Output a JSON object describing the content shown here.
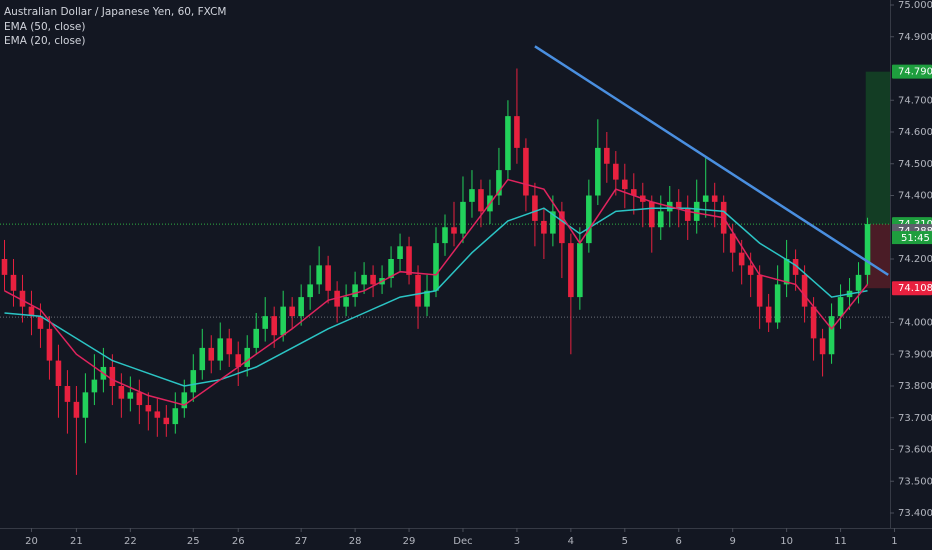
{
  "chart_data": {
    "type": "candlestick",
    "title": "Australian Dollar / Japanese Yen, 60, FXCM",
    "up_color": "#22d15b",
    "down_color": "#e8213f",
    "xlim": [
      -0.5,
      98.5
    ],
    "ylim": [
      73.4,
      75.0
    ],
    "xticks": [
      {
        "value": 3,
        "label": "20"
      },
      {
        "value": 8,
        "label": "21"
      },
      {
        "value": 14,
        "label": "22"
      },
      {
        "value": 21,
        "label": "25"
      },
      {
        "value": 26,
        "label": "26"
      },
      {
        "value": 33,
        "label": "27"
      },
      {
        "value": 39,
        "label": "28"
      },
      {
        "value": 45,
        "label": "29"
      },
      {
        "value": 51,
        "label": "Dec"
      },
      {
        "value": 57,
        "label": "3"
      },
      {
        "value": 63,
        "label": "4"
      },
      {
        "value": 69,
        "label": "5"
      },
      {
        "value": 75,
        "label": "6"
      },
      {
        "value": 81,
        "label": "9"
      },
      {
        "value": 87,
        "label": "10"
      },
      {
        "value": 93,
        "label": "11"
      },
      {
        "value": 99,
        "label": "1"
      }
    ],
    "yticks": [
      {
        "value": 75.0,
        "label": "75.000"
      },
      {
        "value": 74.9,
        "label": "74.900"
      },
      {
        "value": 74.7,
        "label": "74.700"
      },
      {
        "value": 74.6,
        "label": "74.600"
      },
      {
        "value": 74.5,
        "label": "74.500"
      },
      {
        "value": 74.4,
        "label": "74.400"
      },
      {
        "value": 74.2,
        "label": "74.200"
      },
      {
        "value": 74.0,
        "label": "74.000"
      },
      {
        "value": 73.9,
        "label": "73.900"
      },
      {
        "value": 73.8,
        "label": "73.800"
      },
      {
        "value": 73.7,
        "label": "73.700"
      },
      {
        "value": 73.6,
        "label": "73.600"
      },
      {
        "value": 73.5,
        "label": "73.500"
      },
      {
        "value": 73.4,
        "label": "73.400"
      }
    ],
    "x": [
      0,
      1,
      2,
      3,
      4,
      5,
      6,
      7,
      8,
      9,
      10,
      11,
      12,
      13,
      14,
      15,
      16,
      17,
      18,
      19,
      20,
      21,
      22,
      23,
      24,
      25,
      26,
      27,
      28,
      29,
      30,
      31,
      32,
      33,
      34,
      35,
      36,
      37,
      38,
      39,
      40,
      41,
      42,
      43,
      44,
      45,
      46,
      47,
      48,
      49,
      50,
      51,
      52,
      53,
      54,
      55,
      56,
      57,
      58,
      59,
      60,
      61,
      62,
      63,
      64,
      65,
      66,
      67,
      68,
      69,
      70,
      71,
      72,
      73,
      74,
      75,
      76,
      77,
      78,
      79,
      80,
      81,
      82,
      83,
      84,
      85,
      86,
      87,
      88,
      89,
      90,
      91,
      92,
      93,
      94,
      95,
      96
    ],
    "open": [
      74.2,
      74.15,
      74.1,
      74.05,
      74.02,
      73.98,
      73.88,
      73.8,
      73.75,
      73.7,
      73.78,
      73.82,
      73.86,
      73.8,
      73.76,
      73.78,
      73.74,
      73.72,
      73.7,
      73.68,
      73.73,
      73.78,
      73.85,
      73.92,
      73.88,
      73.95,
      73.9,
      73.86,
      73.92,
      73.98,
      74.02,
      73.96,
      74.05,
      74.02,
      74.08,
      74.12,
      74.18,
      74.1,
      74.05,
      74.08,
      74.12,
      74.15,
      74.12,
      74.14,
      74.2,
      74.24,
      74.15,
      74.05,
      74.1,
      74.25,
      74.3,
      74.28,
      74.38,
      74.42,
      74.35,
      74.4,
      74.48,
      74.65,
      74.55,
      74.4,
      74.32,
      74.28,
      74.35,
      74.25,
      74.08,
      74.25,
      74.4,
      74.55,
      74.5,
      74.45,
      74.42,
      74.4,
      74.38,
      74.3,
      74.35,
      74.38,
      74.36,
      74.32,
      74.38,
      74.4,
      74.38,
      74.28,
      74.22,
      74.18,
      74.15,
      74.05,
      74.0,
      74.12,
      74.2,
      74.15,
      74.05,
      73.95,
      73.9,
      74.02,
      74.08,
      74.1,
      74.15
    ],
    "high": [
      74.26,
      74.2,
      74.15,
      74.1,
      74.06,
      74.02,
      73.93,
      73.85,
      73.8,
      73.84,
      73.9,
      73.92,
      73.9,
      73.84,
      73.83,
      73.82,
      73.78,
      73.76,
      73.74,
      73.78,
      73.82,
      73.9,
      73.98,
      73.96,
      74.0,
      73.98,
      73.94,
      73.96,
      74.03,
      74.08,
      74.05,
      74.1,
      74.08,
      74.12,
      74.18,
      74.24,
      74.21,
      74.13,
      74.12,
      74.16,
      74.19,
      74.18,
      74.18,
      74.24,
      74.28,
      74.27,
      74.18,
      74.15,
      74.3,
      74.34,
      74.38,
      74.46,
      74.48,
      74.45,
      74.45,
      74.55,
      74.7,
      74.8,
      74.58,
      74.44,
      74.36,
      74.4,
      74.38,
      74.28,
      74.3,
      74.45,
      74.64,
      74.6,
      74.54,
      74.5,
      74.47,
      74.44,
      74.4,
      74.4,
      74.43,
      74.42,
      74.4,
      74.45,
      74.52,
      74.44,
      74.4,
      74.31,
      74.26,
      74.22,
      74.18,
      74.09,
      74.18,
      74.26,
      74.23,
      74.18,
      74.08,
      73.98,
      74.06,
      74.12,
      74.14,
      74.19,
      74.33
    ],
    "low": [
      74.1,
      74.05,
      74.0,
      73.96,
      73.92,
      73.82,
      73.7,
      73.65,
      73.52,
      73.62,
      73.74,
      73.78,
      73.74,
      73.7,
      73.72,
      73.68,
      73.66,
      73.64,
      73.64,
      73.65,
      73.7,
      73.75,
      73.82,
      73.84,
      73.85,
      73.86,
      73.8,
      73.83,
      73.9,
      73.94,
      73.92,
      73.94,
      73.98,
      73.99,
      74.04,
      74.09,
      74.06,
      74.0,
      74.02,
      74.05,
      74.09,
      74.08,
      74.09,
      74.11,
      74.16,
      74.12,
      73.98,
      74.02,
      74.08,
      74.21,
      74.24,
      74.25,
      74.33,
      74.3,
      74.31,
      74.37,
      74.45,
      74.5,
      74.35,
      74.24,
      74.2,
      74.24,
      74.14,
      73.9,
      74.04,
      74.22,
      74.37,
      74.44,
      74.4,
      74.36,
      74.34,
      74.3,
      74.22,
      74.26,
      74.3,
      74.3,
      74.26,
      74.28,
      74.33,
      74.3,
      74.22,
      74.16,
      74.12,
      74.08,
      73.98,
      73.97,
      73.98,
      74.08,
      74.1,
      74.0,
      73.88,
      73.83,
      73.87,
      73.98,
      74.04,
      74.06,
      74.12
    ],
    "close": [
      74.15,
      74.1,
      74.05,
      74.02,
      73.98,
      73.88,
      73.8,
      73.75,
      73.7,
      73.78,
      73.82,
      73.86,
      73.8,
      73.76,
      73.78,
      73.74,
      73.72,
      73.7,
      73.68,
      73.73,
      73.78,
      73.85,
      73.92,
      73.88,
      73.95,
      73.9,
      73.86,
      73.92,
      73.98,
      74.02,
      73.96,
      74.05,
      74.02,
      74.08,
      74.12,
      74.18,
      74.1,
      74.05,
      74.08,
      74.12,
      74.15,
      74.12,
      74.14,
      74.2,
      74.24,
      74.15,
      74.05,
      74.1,
      74.25,
      74.3,
      74.28,
      74.38,
      74.42,
      74.35,
      74.4,
      74.48,
      74.65,
      74.55,
      74.4,
      74.32,
      74.28,
      74.35,
      74.25,
      74.08,
      74.25,
      74.4,
      74.55,
      74.5,
      74.45,
      74.42,
      74.4,
      74.38,
      74.3,
      74.35,
      74.38,
      74.36,
      74.32,
      74.38,
      74.4,
      74.38,
      74.28,
      74.22,
      74.18,
      74.15,
      74.05,
      74.0,
      74.12,
      74.2,
      74.15,
      74.05,
      73.95,
      73.9,
      74.02,
      74.08,
      74.1,
      74.15,
      74.31
    ],
    "indicators": [
      {
        "name": "EMA (50, close)",
        "color": "#2bc4c4",
        "x": [
          0,
          4,
          8,
          12,
          16,
          20,
          24,
          28,
          32,
          36,
          40,
          44,
          48,
          52,
          56,
          60,
          64,
          68,
          72,
          76,
          80,
          84,
          88,
          92,
          96
        ],
        "values": [
          74.03,
          74.02,
          73.95,
          73.88,
          73.84,
          73.8,
          73.82,
          73.86,
          73.92,
          73.98,
          74.03,
          74.08,
          74.1,
          74.22,
          74.32,
          74.36,
          74.28,
          74.35,
          74.36,
          74.36,
          74.35,
          74.25,
          74.18,
          74.08,
          74.1
        ]
      },
      {
        "name": "EMA (20, close)",
        "color": "#e0245e",
        "x": [
          0,
          4,
          8,
          12,
          16,
          20,
          24,
          28,
          32,
          36,
          40,
          44,
          48,
          52,
          56,
          60,
          64,
          68,
          72,
          76,
          80,
          84,
          88,
          92,
          96
        ],
        "values": [
          74.1,
          74.04,
          73.9,
          73.82,
          73.77,
          73.74,
          73.82,
          73.9,
          73.98,
          74.07,
          74.1,
          74.16,
          74.15,
          74.3,
          74.45,
          74.42,
          74.25,
          74.42,
          74.38,
          74.35,
          74.33,
          74.15,
          74.12,
          73.98,
          74.12
        ]
      }
    ],
    "trendline": {
      "x": [
        59,
        98.3
      ],
      "y": [
        74.87,
        74.15
      ],
      "color": "#4a8fe0"
    },
    "price_lines": [
      {
        "value": 74.31,
        "color": "#2fb344"
      },
      {
        "value": 74.017,
        "color": "#6b6f7a"
      }
    ],
    "position": {
      "x": 95.8,
      "target": 74.79,
      "entry": 74.31,
      "stop": 74.108,
      "profit_color": "#133d24",
      "loss_color": "#4a1c26"
    },
    "price_tags": [
      {
        "value": 74.79,
        "label": "74.790",
        "color": "#1e9e3e"
      },
      {
        "value": 74.31,
        "label": "74.310",
        "color": "#1e9e3e"
      },
      {
        "value": 74.288,
        "label": "74.288",
        "color": "#5d606b"
      },
      {
        "value": 74.108,
        "label": "74.108",
        "color": "#e8213f"
      }
    ],
    "countdown": "51:45"
  }
}
